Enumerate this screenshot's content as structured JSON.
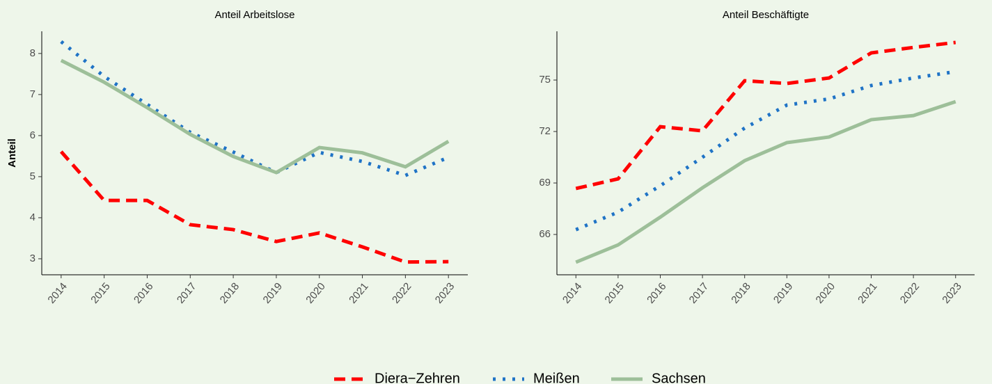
{
  "chart_data": [
    {
      "type": "line",
      "title": "Anteil Arbeitslose",
      "y_label": "Anteil",
      "categories": [
        "2014",
        "2015",
        "2016",
        "2017",
        "2018",
        "2019",
        "2020",
        "2021",
        "2022",
        "2023"
      ],
      "series": [
        {
          "name": "Diera−Zehren",
          "color": "#ff0000",
          "values": [
            5.61,
            4.42,
            4.42,
            3.83,
            3.71,
            3.42,
            3.63,
            3.29,
            2.92,
            2.93
          ]
        },
        {
          "name": "Meißen",
          "color": "#1f73c6",
          "values": [
            8.29,
            7.44,
            6.76,
            6.08,
            5.6,
            5.1,
            5.59,
            5.37,
            5.03,
            5.47
          ]
        },
        {
          "name": "Sachsen",
          "color": "#9dbf99",
          "values": [
            7.83,
            7.3,
            6.68,
            6.03,
            5.49,
            5.1,
            5.71,
            5.58,
            5.24,
            5.86
          ]
        }
      ],
      "ylim": [
        2.61,
        8.54
      ],
      "yticks": [
        3,
        4,
        5,
        6,
        7,
        8
      ]
    },
    {
      "type": "line",
      "title": "Anteil Beschäftigte",
      "categories": [
        "2014",
        "2015",
        "2016",
        "2017",
        "2018",
        "2019",
        "2020",
        "2021",
        "2022",
        "2023"
      ],
      "series": [
        {
          "name": "Diera−Zehren",
          "color": "#ff0000",
          "values": [
            68.68,
            69.24,
            72.28,
            72.04,
            74.96,
            74.8,
            75.12,
            76.58,
            76.9,
            77.19
          ]
        },
        {
          "name": "Meißen",
          "color": "#1f73c6",
          "values": [
            66.28,
            67.3,
            68.84,
            70.5,
            72.2,
            73.54,
            73.9,
            74.68,
            75.12,
            75.49
          ]
        },
        {
          "name": "Sachsen",
          "color": "#9dbf99",
          "values": [
            64.38,
            65.39,
            67.01,
            68.72,
            70.3,
            71.35,
            71.68,
            72.69,
            72.93,
            73.74
          ]
        }
      ],
      "ylim": [
        63.65,
        77.84
      ],
      "yticks": [
        66,
        69,
        72,
        75
      ]
    }
  ]
}
